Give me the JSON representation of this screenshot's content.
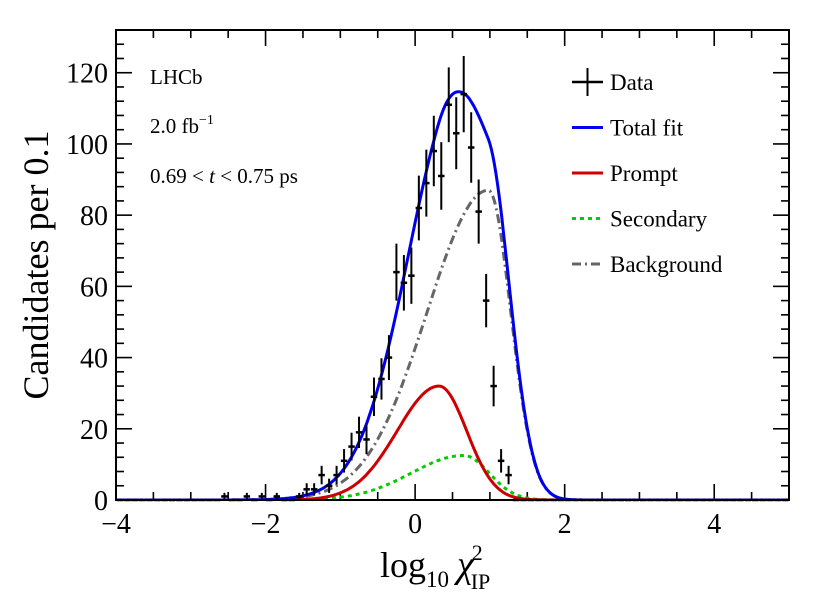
{
  "chart_data": {
    "type": "line",
    "title": "",
    "xlabel": "log",
    "xlabel_sub": "10",
    "xlabel_symbol": "χ",
    "xlabel_sup": "2",
    "xlabel_symbol_sub": "IP",
    "ylabel": "Candidates per 0.1",
    "xlim": [
      -4,
      5
    ],
    "ylim": [
      0,
      132
    ],
    "x_major_ticks": [
      -4,
      -2,
      0,
      2,
      4
    ],
    "x_tick_labels": [
      "−4",
      "−2",
      "0",
      "2",
      "4"
    ],
    "y_major_ticks": [
      0,
      20,
      40,
      60,
      80,
      100,
      120
    ],
    "y_tick_labels": [
      "0",
      "20",
      "40",
      "60",
      "80",
      "100",
      "120"
    ],
    "annotations": {
      "experiment": "LHCb",
      "lumi": "2.0 fb",
      "lumi_sup": "−1",
      "time_low": "0.69 < ",
      "time_var": "t",
      "time_high": " < 0.75 ps"
    },
    "legend": [
      {
        "label": "Data",
        "style": "data",
        "color": "#000000"
      },
      {
        "label": "Total fit",
        "style": "solid",
        "color": "#0000ee"
      },
      {
        "label": "Prompt",
        "style": "solid",
        "color": "#cc0000"
      },
      {
        "label": "Secondary",
        "style": "dotted",
        "color": "#00cc00"
      },
      {
        "label": "Background",
        "style": "dashdot",
        "color": "#666666"
      }
    ],
    "data_points": {
      "bin_width": 0.1,
      "x": [
        -3.95,
        -3.85,
        -3.75,
        -3.65,
        -3.55,
        -3.45,
        -3.35,
        -3.25,
        -3.15,
        -3.05,
        -2.95,
        -2.85,
        -2.75,
        -2.65,
        -2.55,
        -2.45,
        -2.35,
        -2.25,
        -2.15,
        -2.05,
        -1.95,
        -1.85,
        -1.75,
        -1.65,
        -1.55,
        -1.45,
        -1.35,
        -1.25,
        -1.15,
        -1.05,
        -0.95,
        -0.85,
        -0.75,
        -0.65,
        -0.55,
        -0.45,
        -0.35,
        -0.25,
        -0.15,
        -0.05,
        0.05,
        0.15,
        0.25,
        0.35,
        0.45,
        0.55,
        0.65,
        0.75,
        0.85,
        0.95,
        1.05,
        1.15,
        1.25,
        1.35,
        1.45,
        1.55,
        1.65,
        1.75,
        1.85,
        1.95,
        2.05,
        2.15,
        2.25,
        2.35,
        2.45,
        2.55,
        2.65,
        2.75,
        2.85,
        2.95,
        3.05,
        3.15,
        3.25,
        3.35,
        3.45,
        3.55,
        3.65,
        3.75,
        3.85,
        3.95,
        4.05,
        4.15,
        4.25,
        4.35,
        4.45,
        4.55,
        4.65,
        4.75,
        4.85,
        4.95
      ],
      "y": [
        0,
        0,
        0,
        0,
        0,
        0,
        0,
        0,
        0,
        0,
        0,
        0,
        0,
        0,
        1,
        0,
        0,
        1,
        0,
        1,
        0,
        1,
        0,
        0,
        1,
        3,
        3,
        7,
        4,
        7,
        11,
        15,
        19,
        17,
        29,
        34,
        40,
        64,
        61,
        63,
        82,
        89,
        98,
        91,
        111,
        103,
        114,
        99,
        81,
        56,
        32,
        11,
        7,
        0,
        0,
        0,
        0,
        0,
        0,
        0,
        0,
        0,
        0,
        0,
        0,
        0,
        0,
        0,
        0,
        0,
        0,
        0,
        0,
        0,
        0,
        0,
        0,
        0,
        0,
        0,
        0,
        0,
        0,
        0,
        0,
        0,
        0,
        0,
        0,
        0
      ],
      "yerr": [
        0,
        0,
        0,
        0,
        0,
        0,
        0,
        0,
        0,
        0,
        0,
        0,
        0,
        0,
        1,
        0,
        0,
        1,
        0,
        1,
        0,
        1,
        0,
        0,
        1,
        1.7,
        1.7,
        2.6,
        2,
        2.6,
        3.3,
        3.9,
        4.4,
        4.1,
        5.4,
        5.8,
        6.3,
        8,
        7.8,
        7.9,
        9.1,
        9.4,
        9.9,
        9.5,
        10.5,
        10.1,
        10.7,
        9.9,
        9,
        7.5,
        5.7,
        3.3,
        2.6,
        0,
        0,
        0,
        0,
        0,
        0,
        0,
        0,
        0,
        0,
        0,
        0,
        0,
        0,
        0,
        0,
        0,
        0,
        0,
        0,
        0,
        0,
        0,
        0,
        0,
        0,
        0,
        0,
        0,
        0,
        0,
        0,
        0,
        0,
        0,
        0,
        0
      ]
    },
    "components": {
      "background": {
        "amplitude": 87,
        "mean": 0.98,
        "sigma_left": 0.82,
        "sigma_right": 0.3
      },
      "prompt": {
        "amplitude": 32,
        "mean": 0.32,
        "sigma_left": 0.56,
        "sigma_right": 0.37
      },
      "secondary": {
        "amplitude": 12.5,
        "mean": 0.65,
        "sigma_left": 0.7,
        "sigma_right": 0.34
      }
    }
  }
}
